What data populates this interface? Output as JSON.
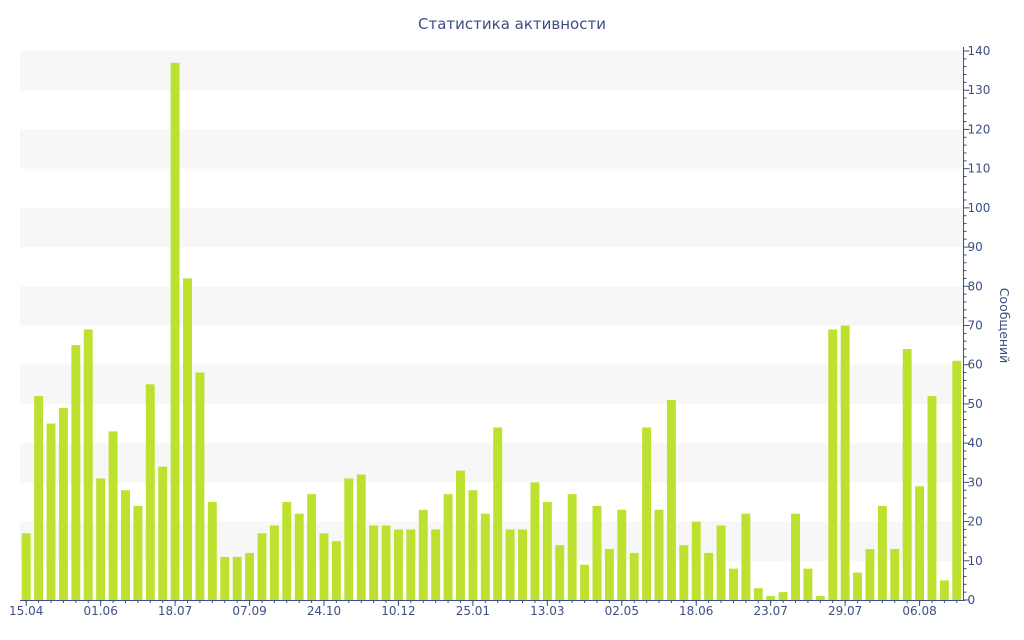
{
  "chart_data": {
    "type": "bar",
    "title": "Статистика активности",
    "ylabel": "Сообщений",
    "xlabel": "",
    "ylim": [
      0,
      140
    ],
    "y_ticks": [
      0,
      10,
      20,
      30,
      40,
      50,
      60,
      70,
      80,
      90,
      100,
      110,
      120,
      130,
      140
    ],
    "y_axis_side": "right",
    "grid": "alternating horizontal bands",
    "legend": "none",
    "x_tick_labels": [
      {
        "index": 0,
        "label": "15.04"
      },
      {
        "index": 6,
        "label": "01.06"
      },
      {
        "index": 12,
        "label": "18.07"
      },
      {
        "index": 18,
        "label": "07.09"
      },
      {
        "index": 24,
        "label": "24.10"
      },
      {
        "index": 30,
        "label": "10.12"
      },
      {
        "index": 36,
        "label": "25.01"
      },
      {
        "index": 42,
        "label": "13.03"
      },
      {
        "index": 48,
        "label": "02.05"
      },
      {
        "index": 54,
        "label": "18.06"
      },
      {
        "index": 60,
        "label": "23.07"
      },
      {
        "index": 66,
        "label": "29.07"
      },
      {
        "index": 72,
        "label": "06.08"
      }
    ],
    "values": [
      17,
      52,
      45,
      49,
      65,
      69,
      31,
      43,
      28,
      24,
      55,
      34,
      137,
      82,
      58,
      25,
      11,
      11,
      12,
      17,
      19,
      25,
      22,
      27,
      17,
      15,
      31,
      32,
      19,
      19,
      18,
      18,
      23,
      18,
      27,
      33,
      28,
      22,
      44,
      18,
      18,
      30,
      25,
      14,
      27,
      9,
      24,
      13,
      23,
      12,
      44,
      23,
      51,
      14,
      20,
      12,
      19,
      8,
      22,
      3,
      1,
      2,
      22,
      8,
      1,
      69,
      70,
      7,
      13,
      24,
      13,
      64,
      29,
      52,
      5,
      61
    ],
    "colors": {
      "bar": "#bde12f",
      "band": "#f7f7f7",
      "axis": "#3e4e85",
      "text": "#3e4e85"
    }
  }
}
